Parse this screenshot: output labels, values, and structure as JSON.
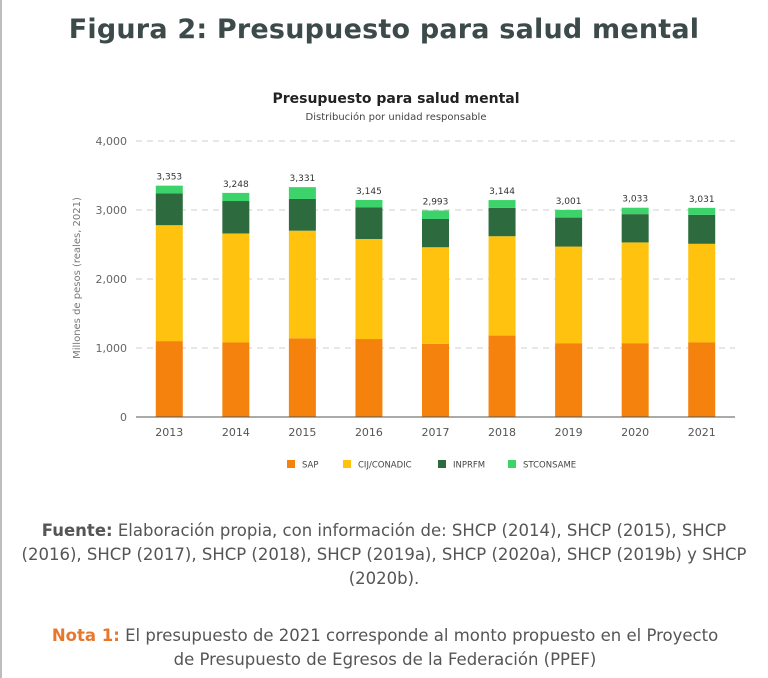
{
  "figure": {
    "title": "Figura 2: Presupuesto para salud mental"
  },
  "chart_data": {
    "type": "stacked-bar",
    "title": "Presupuesto para salud mental",
    "subtitle": "Distribución por unidad responsable",
    "ylabel": "Millones de pesos (reales, 2021)",
    "xlabel": "",
    "ylim": [
      0,
      4000
    ],
    "yticks": [
      0,
      1000,
      2000,
      3000,
      4000
    ],
    "ytick_labels": [
      "0",
      "1,000",
      "2,000",
      "3,000",
      "4,000"
    ],
    "grid": true,
    "legend_position": "bottom",
    "categories": [
      "2013",
      "2014",
      "2015",
      "2016",
      "2017",
      "2018",
      "2019",
      "2020",
      "2021"
    ],
    "series": [
      {
        "name": "SAP",
        "color": "#f5820d",
        "values": [
          1100,
          1080,
          1140,
          1130,
          1060,
          1180,
          1070,
          1070,
          1080
        ]
      },
      {
        "name": "CIJ/CONADIC",
        "color": "#ffc20e",
        "values": [
          1680,
          1580,
          1560,
          1450,
          1400,
          1440,
          1400,
          1460,
          1430
        ]
      },
      {
        "name": "INPRFM",
        "color": "#2d6a3e",
        "values": [
          460,
          470,
          460,
          460,
          410,
          410,
          420,
          410,
          420
        ]
      },
      {
        "name": "STCONSAME",
        "color": "#3cd46a",
        "values": [
          113,
          118,
          171,
          105,
          123,
          114,
          111,
          93,
          101
        ]
      }
    ],
    "totals": [
      3353,
      3248,
      3331,
      3145,
      2993,
      3144,
      3001,
      3033,
      3031
    ],
    "total_labels": [
      "3,353",
      "3,248",
      "3,331",
      "3,145",
      "2,993",
      "3,144",
      "3,001",
      "3,033",
      "3,031"
    ]
  },
  "source": {
    "label": "Fuente:",
    "text": "Elaboración propia, con información de: SHCP (2014), SHCP (2015), SHCP (2016), SHCP (2017), SHCP (2018), SHCP (2019a), SHCP (2020a), SHCP (2019b) y SHCP (2020b)."
  },
  "note": {
    "label": "Nota 1:",
    "text": "El presupuesto de 2021 corresponde al monto propuesto en el Proyecto de Presupuesto de Egresos de la Federación (PPEF)"
  }
}
